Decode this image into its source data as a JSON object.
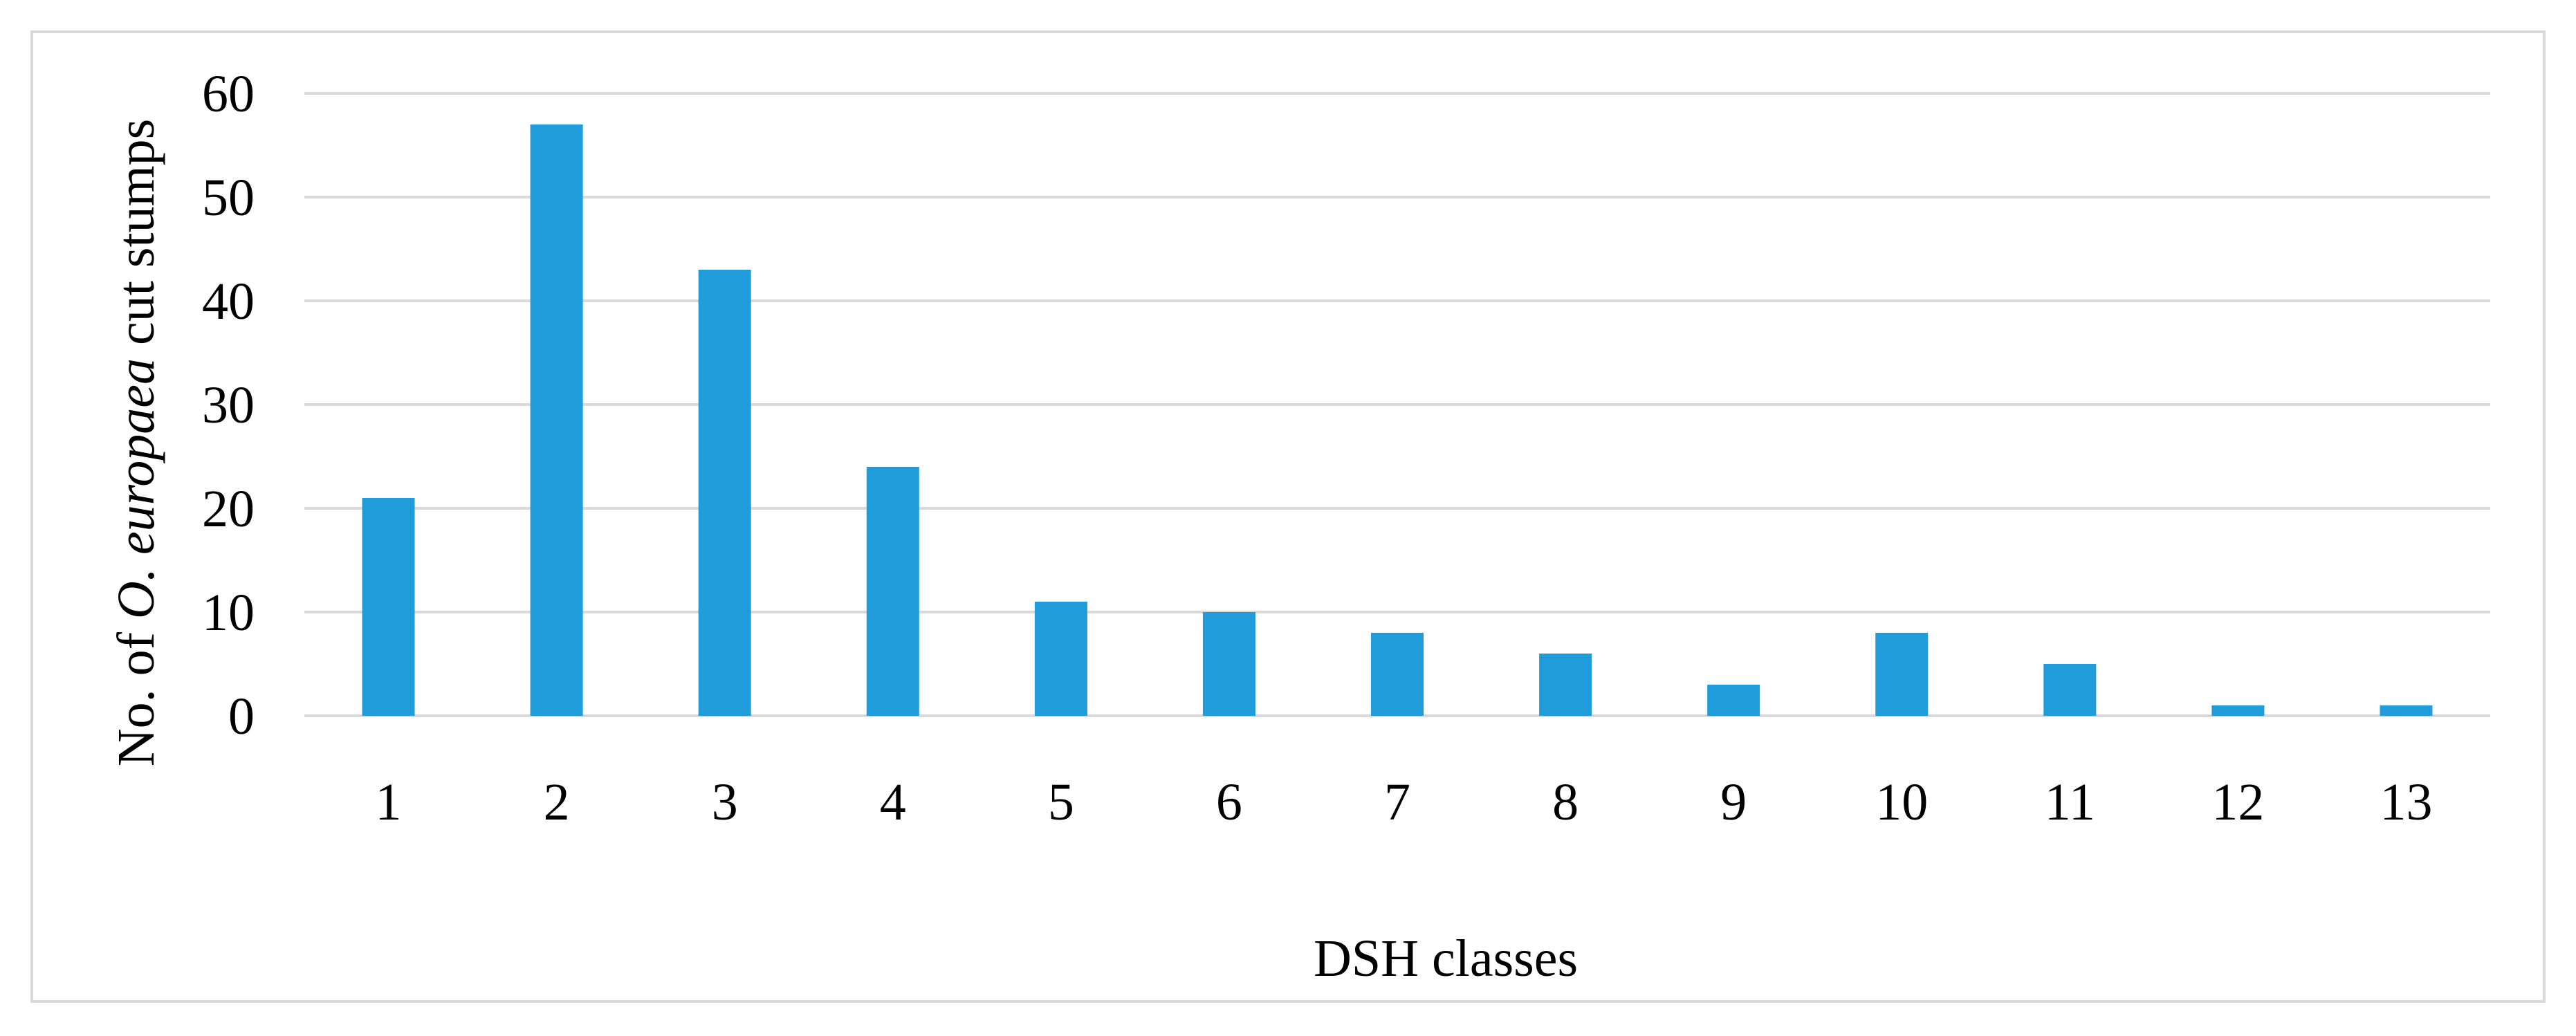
{
  "chart_data": {
    "type": "bar",
    "categories": [
      "1",
      "2",
      "3",
      "4",
      "5",
      "6",
      "7",
      "8",
      "9",
      "10",
      "11",
      "12",
      "13"
    ],
    "values": [
      21,
      57,
      43,
      24,
      11,
      10,
      8,
      6,
      3,
      8,
      5,
      1,
      1
    ],
    "xlabel": "DSH classes",
    "ylabel": {
      "prefix": "No. of ",
      "italic": "O. europaea",
      "suffix": " cut stumps"
    },
    "ylim": [
      0,
      60
    ],
    "yticks": [
      "0",
      "10",
      "20",
      "30",
      "40",
      "50",
      "60"
    ],
    "grid": true,
    "legend": "none",
    "colors": {
      "bar": "#1f9cd9",
      "grid": "#d9d9d9",
      "frame": "#d9d9d9"
    }
  }
}
